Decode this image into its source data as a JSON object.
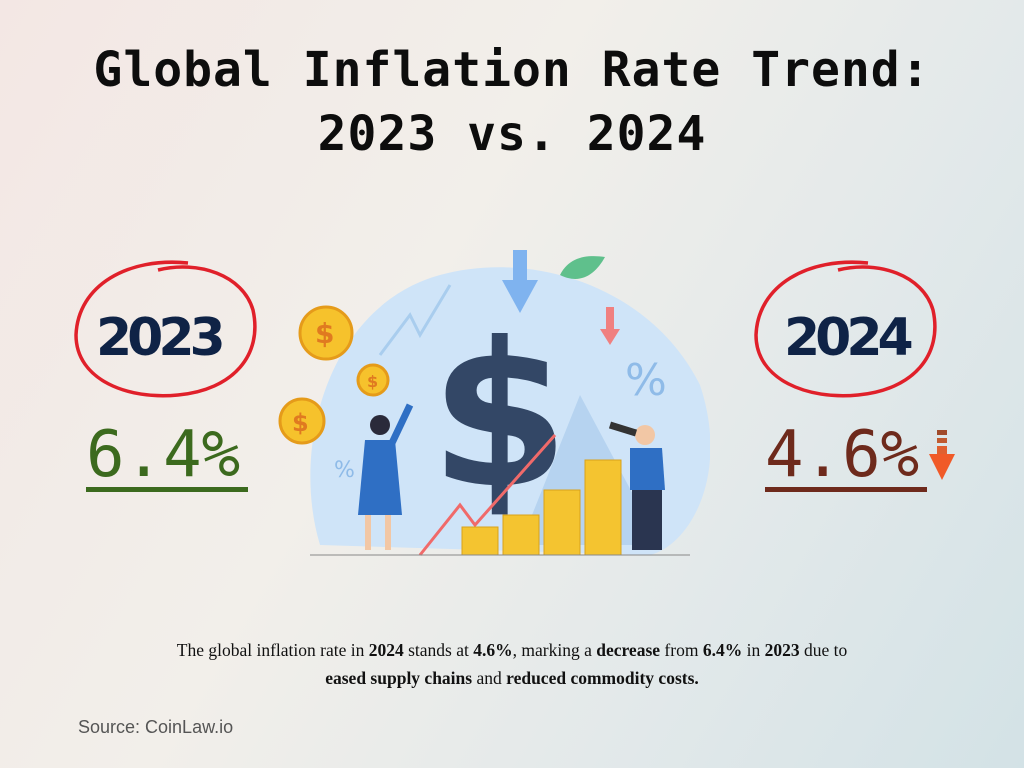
{
  "title": "Global Inflation Rate Trend: 2023 vs. 2024",
  "left": {
    "year": "2023",
    "value": "6.4%",
    "color": "#3c6a1e"
  },
  "right": {
    "year": "2024",
    "value": "4.6%",
    "color": "#6e2a1c",
    "trend_icon": "down-arrow-icon"
  },
  "accent_circle": "#e0202a",
  "caption": [
    {
      "t": "The global inflation rate in ",
      "b": false
    },
    {
      "t": "2024",
      "b": true
    },
    {
      "t": " stands at ",
      "b": false
    },
    {
      "t": "4.6%",
      "b": true
    },
    {
      "t": ", marking a ",
      "b": false
    },
    {
      "t": "decrease",
      "b": true
    },
    {
      "t": " from ",
      "b": false
    },
    {
      "t": "6.4%",
      "b": true
    },
    {
      "t": " in ",
      "b": false
    },
    {
      "t": "2023",
      "b": true
    },
    {
      "t": " due to ",
      "b": false
    },
    {
      "t": "eased supply chains",
      "b": true
    },
    {
      "t": " and ",
      "b": false
    },
    {
      "t": "reduced commodity costs.",
      "b": true
    }
  ],
  "source": "Source: CoinLaw.io"
}
